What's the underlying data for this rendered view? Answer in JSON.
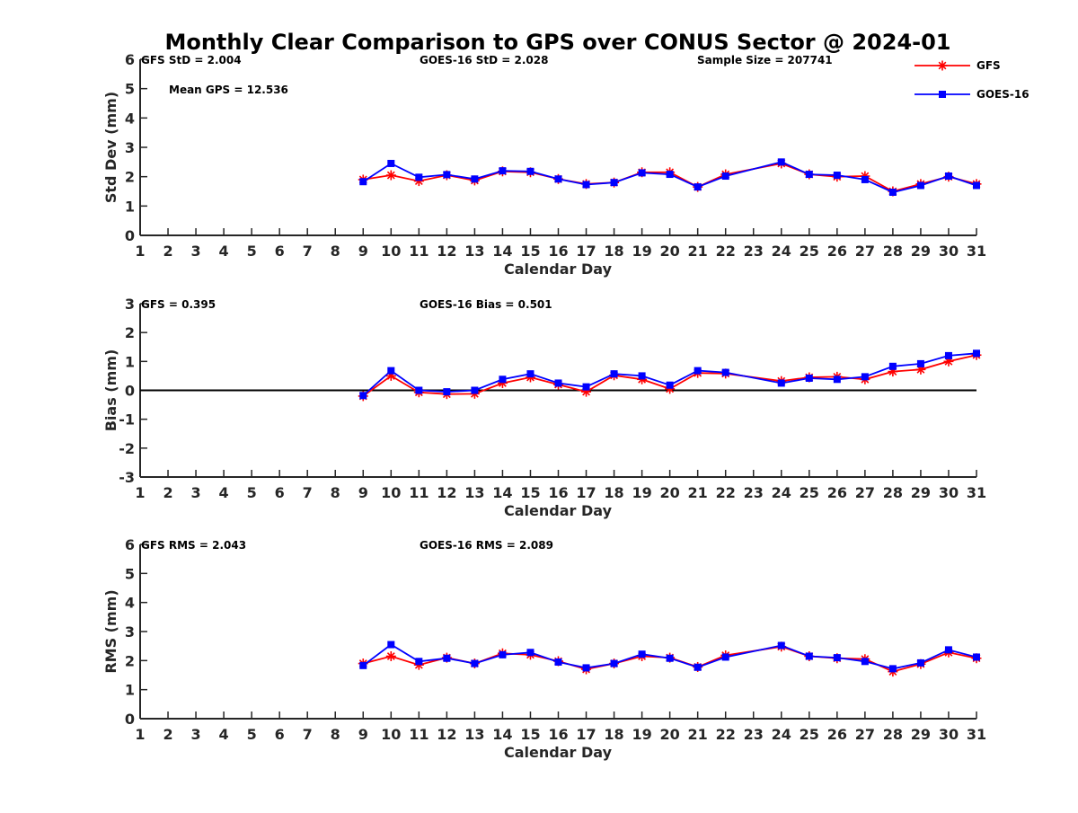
{
  "chart_data": {
    "title": "Monthly Clear Comparison to GPS over CONUS Sector @ 2024-01",
    "legend": {
      "placement": "top-right",
      "entries": [
        {
          "name": "GFS",
          "color": "#ff0000",
          "marker": "asterisk"
        },
        {
          "name": "GOES-16",
          "color": "#0000ff",
          "marker": "square"
        }
      ]
    },
    "panels": [
      {
        "type": "line",
        "xlabel": "Calendar Day",
        "ylabel": "Std Dev (mm)",
        "xlim": [
          1,
          31
        ],
        "ylim": [
          0,
          6
        ],
        "x_ticks": [
          1,
          2,
          3,
          4,
          5,
          6,
          7,
          8,
          9,
          10,
          11,
          12,
          13,
          14,
          15,
          16,
          17,
          18,
          19,
          20,
          21,
          22,
          23,
          24,
          25,
          26,
          27,
          28,
          29,
          30,
          31
        ],
        "y_ticks": [
          0,
          1,
          2,
          3,
          4,
          5,
          6
        ],
        "zero_line": false,
        "annotations": {
          "left": "GFS StD = 2.004",
          "middle": "GOES-16 StD = 2.028",
          "right": "Sample Size = 207741",
          "second_left": "Mean GPS = 12.536"
        },
        "x": [
          9,
          10,
          11,
          12,
          13,
          14,
          15,
          16,
          17,
          18,
          19,
          20,
          21,
          22,
          24,
          25,
          26,
          27,
          28,
          29,
          30,
          31
        ],
        "series": [
          {
            "name": "GFS",
            "values": [
              1.9,
              2.05,
              1.85,
              2.05,
              1.87,
              2.18,
              2.15,
              1.92,
              1.75,
              1.8,
              2.15,
              2.15,
              1.65,
              2.08,
              2.45,
              2.08,
              2.0,
              2.02,
              1.5,
              1.75,
              2.0,
              1.75
            ]
          },
          {
            "name": "GOES-16",
            "values": [
              1.83,
              2.45,
              1.98,
              2.07,
              1.92,
              2.2,
              2.18,
              1.92,
              1.73,
              1.8,
              2.13,
              2.08,
              1.65,
              2.02,
              2.5,
              2.08,
              2.05,
              1.9,
              1.47,
              1.7,
              2.02,
              1.7
            ]
          }
        ]
      },
      {
        "type": "line",
        "xlabel": "Calendar Day",
        "ylabel": "Bias (mm)",
        "xlim": [
          1,
          31
        ],
        "ylim": [
          -3,
          3
        ],
        "x_ticks": [
          1,
          2,
          3,
          4,
          5,
          6,
          7,
          8,
          9,
          10,
          11,
          12,
          13,
          14,
          15,
          16,
          17,
          18,
          19,
          20,
          21,
          22,
          23,
          24,
          25,
          26,
          27,
          28,
          29,
          30,
          31
        ],
        "y_ticks": [
          -3,
          -2,
          -1,
          0,
          1,
          2,
          3
        ],
        "zero_line": true,
        "annotations": {
          "left": "GFS = 0.395",
          "middle": "GOES-16 Bias = 0.501",
          "right": "",
          "second_left": ""
        },
        "x": [
          9,
          10,
          11,
          12,
          13,
          14,
          15,
          16,
          17,
          18,
          19,
          20,
          21,
          22,
          24,
          25,
          26,
          27,
          28,
          29,
          30,
          31
        ],
        "series": [
          {
            "name": "GFS",
            "values": [
              -0.2,
              0.5,
              -0.07,
              -0.13,
              -0.12,
              0.25,
              0.45,
              0.2,
              -0.05,
              0.52,
              0.38,
              0.05,
              0.6,
              0.58,
              0.32,
              0.45,
              0.47,
              0.38,
              0.65,
              0.72,
              1.0,
              1.22
            ]
          },
          {
            "name": "GOES-16",
            "values": [
              -0.18,
              0.68,
              0.0,
              -0.05,
              0.0,
              0.38,
              0.57,
              0.25,
              0.12,
              0.57,
              0.5,
              0.18,
              0.68,
              0.62,
              0.25,
              0.42,
              0.38,
              0.47,
              0.83,
              0.92,
              1.2,
              1.28
            ]
          }
        ]
      },
      {
        "type": "line",
        "xlabel": "Calendar Day",
        "ylabel": "RMS (mm)",
        "xlim": [
          1,
          31
        ],
        "ylim": [
          0,
          6
        ],
        "x_ticks": [
          1,
          2,
          3,
          4,
          5,
          6,
          7,
          8,
          9,
          10,
          11,
          12,
          13,
          14,
          15,
          16,
          17,
          18,
          19,
          20,
          21,
          22,
          23,
          24,
          25,
          26,
          27,
          28,
          29,
          30,
          31
        ],
        "y_ticks": [
          0,
          1,
          2,
          3,
          4,
          5,
          6
        ],
        "zero_line": false,
        "annotations": {
          "left": "GFS RMS = 2.043",
          "middle": "GOES-16 RMS = 2.089",
          "right": "",
          "second_left": ""
        },
        "x": [
          9,
          10,
          11,
          12,
          13,
          14,
          15,
          16,
          17,
          18,
          19,
          20,
          21,
          22,
          24,
          25,
          26,
          27,
          28,
          29,
          30,
          31
        ],
        "series": [
          {
            "name": "GFS",
            "values": [
              1.9,
              2.15,
              1.85,
              2.1,
              1.9,
              2.25,
              2.2,
              1.98,
              1.7,
              1.9,
              2.15,
              2.1,
              1.78,
              2.18,
              2.48,
              2.15,
              2.08,
              2.05,
              1.62,
              1.88,
              2.28,
              2.08
            ]
          },
          {
            "name": "GOES-16",
            "values": [
              1.83,
              2.55,
              1.97,
              2.08,
              1.9,
              2.2,
              2.28,
              1.95,
              1.75,
              1.9,
              2.22,
              2.08,
              1.77,
              2.12,
              2.52,
              2.15,
              2.1,
              1.97,
              1.72,
              1.92,
              2.37,
              2.12
            ]
          }
        ]
      }
    ]
  }
}
